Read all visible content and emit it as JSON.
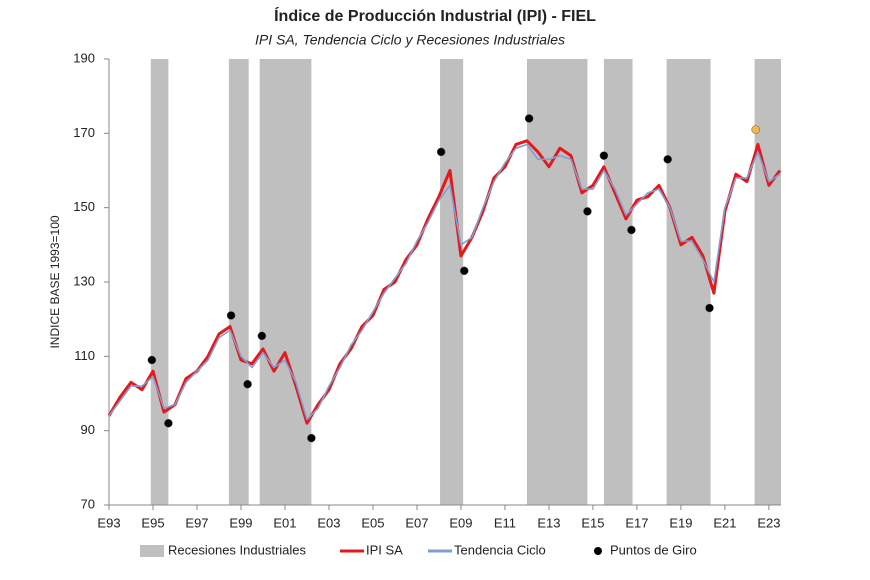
{
  "chart_data": {
    "type": "line",
    "title": "Índice de Producción Industrial (IPI) - FIEL",
    "subtitle": "IPI SA, Tendencia Ciclo y Recesiones Industriales",
    "y_label": "INDICE BASE 1993=100",
    "xlim": [
      1993,
      2023.55
    ],
    "xticks": [
      {
        "value": 1993,
        "label": "E93"
      },
      {
        "value": 1995,
        "label": "E95"
      },
      {
        "value": 1997,
        "label": "E97"
      },
      {
        "value": 1999,
        "label": "E99"
      },
      {
        "value": 2001,
        "label": "E01"
      },
      {
        "value": 2003,
        "label": "E03"
      },
      {
        "value": 2005,
        "label": "E05"
      },
      {
        "value": 2007,
        "label": "E07"
      },
      {
        "value": 2009,
        "label": "E09"
      },
      {
        "value": 2011,
        "label": "E11"
      },
      {
        "value": 2013,
        "label": "E13"
      },
      {
        "value": 2015,
        "label": "E15"
      },
      {
        "value": 2017,
        "label": "E17"
      },
      {
        "value": 2019,
        "label": "E19"
      },
      {
        "value": 2021,
        "label": "E21"
      },
      {
        "value": 2023,
        "label": "E23"
      }
    ],
    "ylim": [
      70,
      190
    ],
    "yticks": [
      70,
      90,
      110,
      130,
      150,
      170,
      190
    ],
    "recessions": {
      "name": "Recesiones Industriales",
      "color": "#bfbfbf",
      "ranges": [
        [
          1994.9,
          1995.7
        ],
        [
          1998.45,
          1999.35
        ],
        [
          1999.85,
          2002.2
        ],
        [
          2008.05,
          2009.1
        ],
        [
          2012.0,
          2014.75
        ],
        [
          2015.5,
          2016.8
        ],
        [
          2018.35,
          2020.35
        ],
        [
          2022.35,
          2023.55
        ]
      ]
    },
    "x": [
      1993,
      1993.5,
      1994,
      1994.5,
      1995,
      1995.5,
      1996,
      1996.5,
      1997,
      1997.5,
      1998,
      1998.5,
      1999,
      1999.5,
      2000,
      2000.5,
      2001,
      2001.5,
      2002,
      2002.5,
      2003,
      2003.5,
      2004,
      2004.5,
      2005,
      2005.5,
      2006,
      2006.5,
      2007,
      2007.5,
      2008,
      2008.5,
      2009,
      2009.5,
      2010,
      2010.5,
      2011,
      2011.5,
      2012,
      2012.5,
      2013,
      2013.5,
      2014,
      2014.5,
      2015,
      2015.5,
      2016,
      2016.5,
      2017,
      2017.5,
      2018,
      2018.5,
      2019,
      2019.5,
      2020,
      2020.5,
      2021,
      2021.5,
      2022,
      2022.5,
      2023,
      2023.5
    ],
    "series": [
      {
        "name": "IPI SA",
        "color": "#e31a1c",
        "values": [
          94,
          99,
          103,
          101,
          106,
          95,
          97,
          104,
          106,
          110,
          116,
          118,
          109,
          108,
          112,
          106,
          111,
          102,
          92,
          97,
          101,
          108,
          112,
          118,
          121,
          128,
          130,
          136,
          140,
          147,
          153,
          160,
          137,
          142,
          149,
          158,
          161,
          167,
          168,
          165,
          161,
          166,
          164,
          154,
          156,
          161,
          154,
          147,
          152,
          153,
          156,
          150,
          140,
          142,
          137,
          127,
          149,
          159,
          157,
          167,
          156,
          160
        ]
      },
      {
        "name": "Tendencia Ciclo",
        "color": "#7f9fd4",
        "values": [
          94,
          98,
          102,
          102,
          104.5,
          96,
          97,
          103,
          106,
          109,
          115,
          117,
          110,
          107,
          111,
          107,
          109,
          103,
          93,
          96,
          102,
          107,
          113,
          117,
          122,
          127,
          131,
          135,
          141,
          146,
          152,
          156,
          140,
          142,
          150,
          157,
          162,
          166,
          167,
          163,
          163,
          164,
          163,
          155,
          155,
          160,
          155,
          148,
          151,
          154,
          155,
          150,
          141,
          141,
          136,
          130,
          150,
          158,
          158,
          165,
          157,
          159
        ]
      }
    ],
    "points": {
      "name": "Puntos de Giro",
      "color": "#000000",
      "x": [
        1994.95,
        1995.7,
        1998.55,
        1999.3,
        1999.95,
        2002.2,
        2008.1,
        2009.15,
        2012.1,
        2014.75,
        2015.5,
        2016.75,
        2018.4,
        2020.3,
        2022.4
      ],
      "values": [
        109,
        92,
        121,
        102.5,
        115.5,
        88,
        165,
        133,
        174,
        149,
        164,
        144,
        163,
        123,
        171
      ],
      "colors": [
        "#000000",
        "#000000",
        "#000000",
        "#000000",
        "#000000",
        "#000000",
        "#000000",
        "#000000",
        "#000000",
        "#000000",
        "#000000",
        "#000000",
        "#000000",
        "#000000",
        "#f4b942"
      ]
    }
  }
}
